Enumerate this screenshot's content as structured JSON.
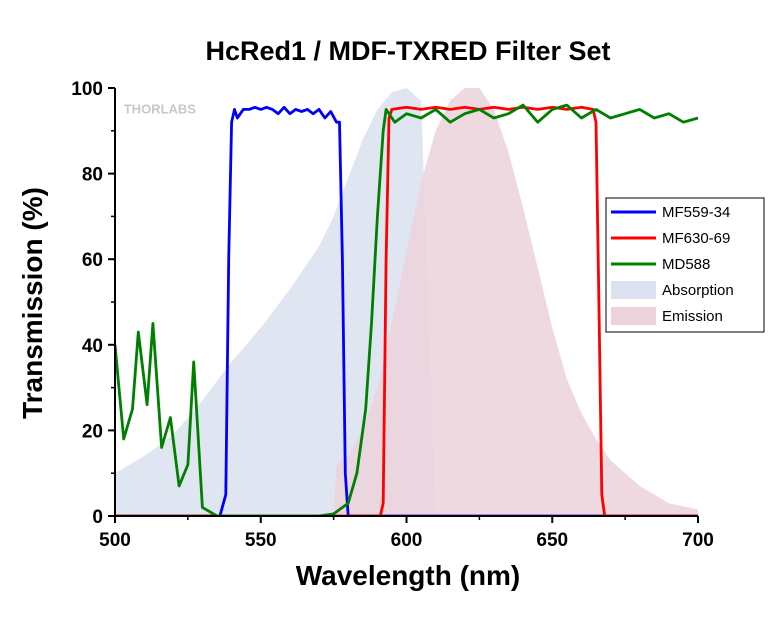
{
  "chart_data": {
    "type": "line",
    "title": "HcRed1 / MDF-TXRED Filter Set",
    "xlabel": "Wavelength (nm)",
    "ylabel": "Transmission (%)",
    "xlim": [
      500,
      700
    ],
    "ylim": [
      0,
      100
    ],
    "x_ticks": [
      "500",
      "550",
      "600",
      "650",
      "700"
    ],
    "y_ticks": [
      "0",
      "20",
      "40",
      "60",
      "80",
      "100"
    ],
    "grid": false,
    "legend_position": "right",
    "watermark": "THORLABS",
    "series": [
      {
        "name": "MF559-34",
        "color": "#0000ff",
        "kind": "line",
        "x": [
          500,
          536,
          538,
          539,
          540,
          541,
          542,
          544,
          546,
          548,
          550,
          552,
          554,
          556,
          558,
          560,
          562,
          564,
          566,
          568,
          570,
          572,
          574,
          576,
          577,
          578,
          579,
          580,
          582,
          700
        ],
        "y": [
          0,
          0,
          5,
          60,
          92,
          95,
          93,
          95,
          95,
          95.5,
          95,
          95.5,
          95,
          94,
          95.5,
          94,
          95,
          94.5,
          95,
          94,
          95,
          93,
          94.5,
          92,
          92,
          60,
          10,
          0,
          0,
          0
        ]
      },
      {
        "name": "MF630-69",
        "color": "#ff0000",
        "kind": "line",
        "x": [
          500,
          591,
          592,
          593,
          594,
          595,
          600,
          605,
          610,
          615,
          620,
          625,
          630,
          635,
          640,
          645,
          650,
          655,
          660,
          664,
          665,
          666,
          667,
          668,
          670,
          700
        ],
        "y": [
          0,
          0,
          3,
          60,
          93,
          95,
          95.5,
          95,
          95.5,
          95,
          95.5,
          95,
          95.5,
          95,
          95.5,
          95,
          95.5,
          95,
          95.5,
          95,
          92,
          50,
          5,
          0,
          0,
          0
        ]
      },
      {
        "name": "MD588",
        "color": "#008000",
        "kind": "line",
        "x": [
          500,
          503,
          506,
          508,
          511,
          513,
          516,
          519,
          522,
          525,
          527,
          530,
          535,
          545,
          560,
          570,
          575,
          580,
          583,
          586,
          588,
          590,
          592,
          593,
          596,
          600,
          605,
          610,
          615,
          620,
          625,
          630,
          635,
          640,
          645,
          650,
          655,
          660,
          665,
          670,
          675,
          680,
          685,
          690,
          695,
          700
        ],
        "y": [
          40,
          18,
          25,
          43,
          26,
          45,
          16,
          23,
          7,
          12,
          36,
          2,
          0,
          0,
          0,
          0,
          0.5,
          3,
          10,
          25,
          45,
          70,
          90,
          95,
          92,
          94,
          93,
          95,
          92,
          94,
          95,
          93,
          94,
          96,
          92,
          95,
          96,
          93,
          95,
          93,
          94,
          95,
          93,
          94,
          92,
          93
        ]
      },
      {
        "name": "Absorption",
        "color": "#dbe1f0",
        "kind": "area",
        "x": [
          500,
          510,
          520,
          530,
          540,
          550,
          560,
          570,
          575,
          580,
          585,
          590,
          595,
          600,
          605,
          610,
          700
        ],
        "y": [
          10,
          14,
          19,
          27,
          36,
          44,
          53,
          63,
          70,
          79,
          88,
          95,
          99,
          100,
          97,
          0,
          0
        ]
      },
      {
        "name": "Emission",
        "color": "#ecd2dc",
        "kind": "area",
        "x": [
          500,
          575,
          576,
          580,
          585,
          590,
          595,
          600,
          605,
          610,
          615,
          620,
          625,
          630,
          635,
          640,
          645,
          650,
          655,
          660,
          665,
          670,
          680,
          690,
          700
        ],
        "y": [
          0,
          0,
          12,
          14,
          20,
          30,
          45,
          62,
          78,
          90,
          97,
          100,
          100,
          95,
          85,
          72,
          58,
          44,
          32,
          24,
          18,
          13,
          7,
          3,
          1.5
        ]
      }
    ]
  }
}
